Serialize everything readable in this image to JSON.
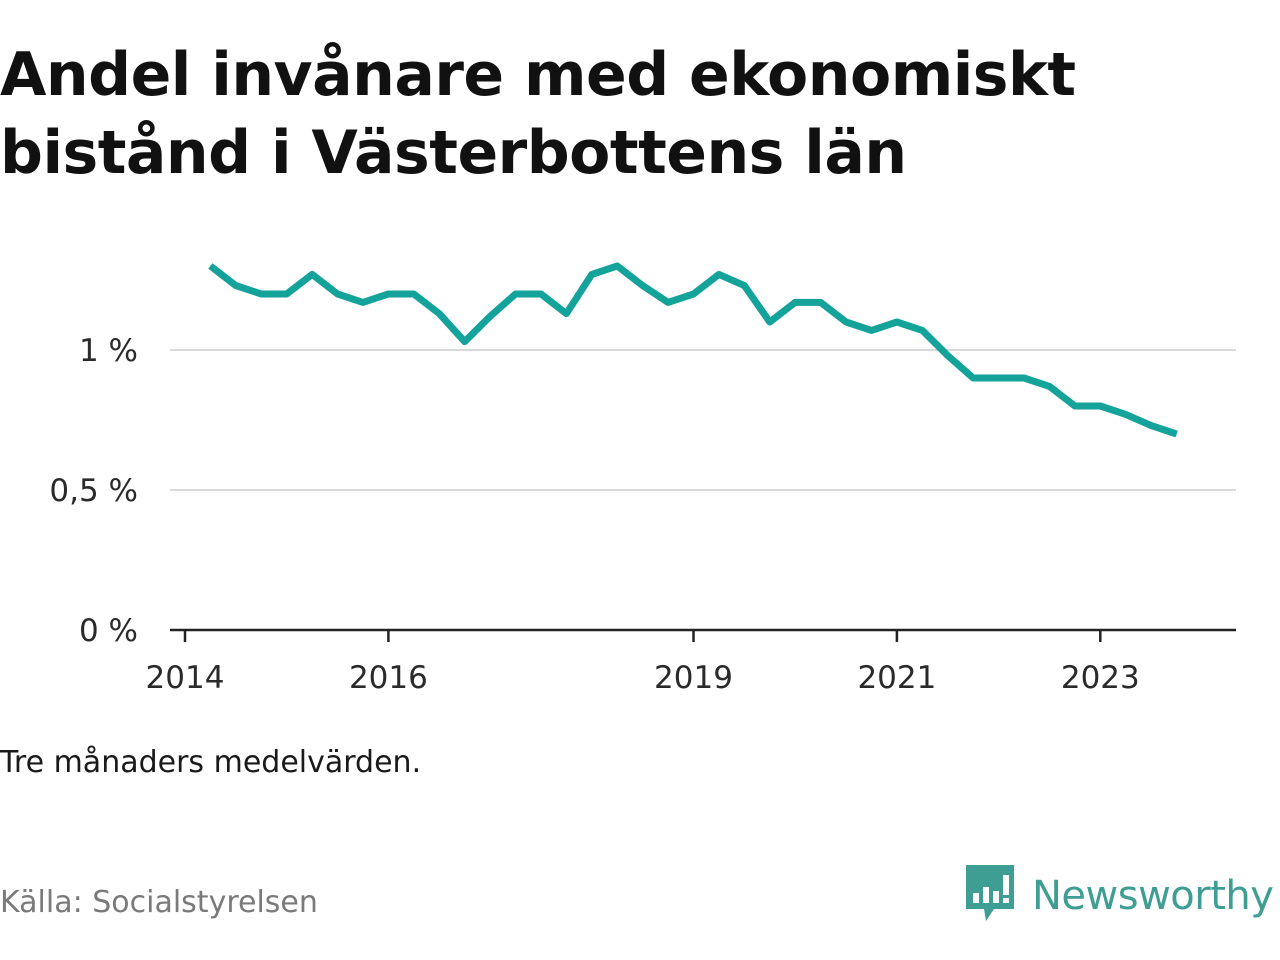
{
  "title": "Andel invånare med ekonomiskt bistånd i Västerbottens län",
  "note": "Tre månaders medelvärden.",
  "source": "Källa: Socialstyrelsen",
  "brand": {
    "name": "Newsworthy",
    "icon": "newsworthy-logo-icon",
    "color": "#3f9e93"
  },
  "chart_data": {
    "type": "line",
    "title": "Andel invånare med ekonomiskt bistånd i Västerbottens län",
    "xlabel": "",
    "ylabel": "",
    "x_ticks": [
      "2014",
      "2016",
      "2019",
      "2021",
      "2023"
    ],
    "y_ticks": [
      "0 %",
      "0,5 %",
      "1 %"
    ],
    "ylim": [
      0,
      1.4
    ],
    "grid": true,
    "line_color": "#13a39a",
    "series": [
      {
        "x": [
          "2014-04",
          "2014-07",
          "2014-10",
          "2015-01",
          "2015-04",
          "2015-07",
          "2015-10",
          "2016-01",
          "2016-04",
          "2016-07",
          "2016-10",
          "2017-01",
          "2017-04",
          "2017-07",
          "2017-10",
          "2018-01",
          "2018-04",
          "2018-07",
          "2018-10",
          "2019-01",
          "2019-04",
          "2019-07",
          "2019-10",
          "2020-01",
          "2020-04",
          "2020-07",
          "2020-10",
          "2021-01",
          "2021-04",
          "2021-07",
          "2021-10",
          "2022-01",
          "2022-04",
          "2022-07",
          "2022-10",
          "2023-01",
          "2023-04",
          "2023-07",
          "2023-10"
        ],
        "values": [
          1.3,
          1.23,
          1.2,
          1.2,
          1.27,
          1.2,
          1.17,
          1.2,
          1.2,
          1.13,
          1.03,
          1.12,
          1.2,
          1.2,
          1.13,
          1.27,
          1.3,
          1.23,
          1.17,
          1.2,
          1.27,
          1.23,
          1.1,
          1.17,
          1.17,
          1.1,
          1.07,
          1.1,
          1.07,
          0.98,
          0.9,
          0.9,
          0.9,
          0.87,
          0.8,
          0.8,
          0.77,
          0.73,
          0.7
        ]
      }
    ]
  }
}
